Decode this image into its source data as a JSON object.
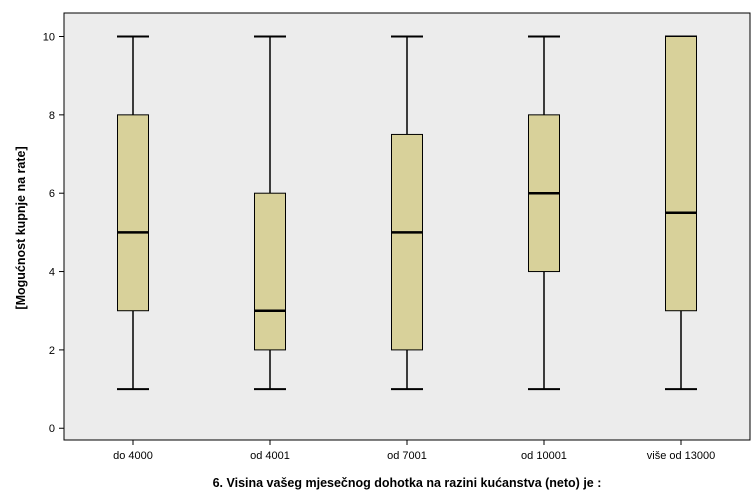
{
  "chart_data": {
    "type": "boxplot",
    "title": "",
    "xlabel": "6. Visina vašeg mjesečnog dohotka na razini kućanstva (neto) je :",
    "ylabel": "[Mogućnost kupnje na rate]",
    "ylim": [
      -0.3,
      10.6
    ],
    "yticks": [
      0,
      2,
      4,
      6,
      8,
      10
    ],
    "grid": false,
    "legend": "none",
    "categories": [
      "do 4000",
      "od 4001",
      "od 7001",
      "od 10001",
      "više od 13000"
    ],
    "boxes": [
      {
        "category": "do 4000",
        "min": 1,
        "q1": 3,
        "median": 5,
        "q3": 8,
        "max": 10
      },
      {
        "category": "od 4001",
        "min": 1,
        "q1": 2,
        "median": 3,
        "q3": 6,
        "max": 10
      },
      {
        "category": "od 7001",
        "min": 1,
        "q1": 2,
        "median": 5,
        "q3": 7.5,
        "max": 10
      },
      {
        "category": "od 10001",
        "min": 1,
        "q1": 4,
        "median": 6,
        "q3": 8,
        "max": 10
      },
      {
        "category": "više od 13000",
        "min": 1,
        "q1": 3,
        "median": 5.5,
        "q3": 10,
        "max": 10
      }
    ],
    "colors": {
      "plot_background": "#ececec",
      "box_fill": "#d8d19a",
      "stroke": "#000000"
    }
  }
}
